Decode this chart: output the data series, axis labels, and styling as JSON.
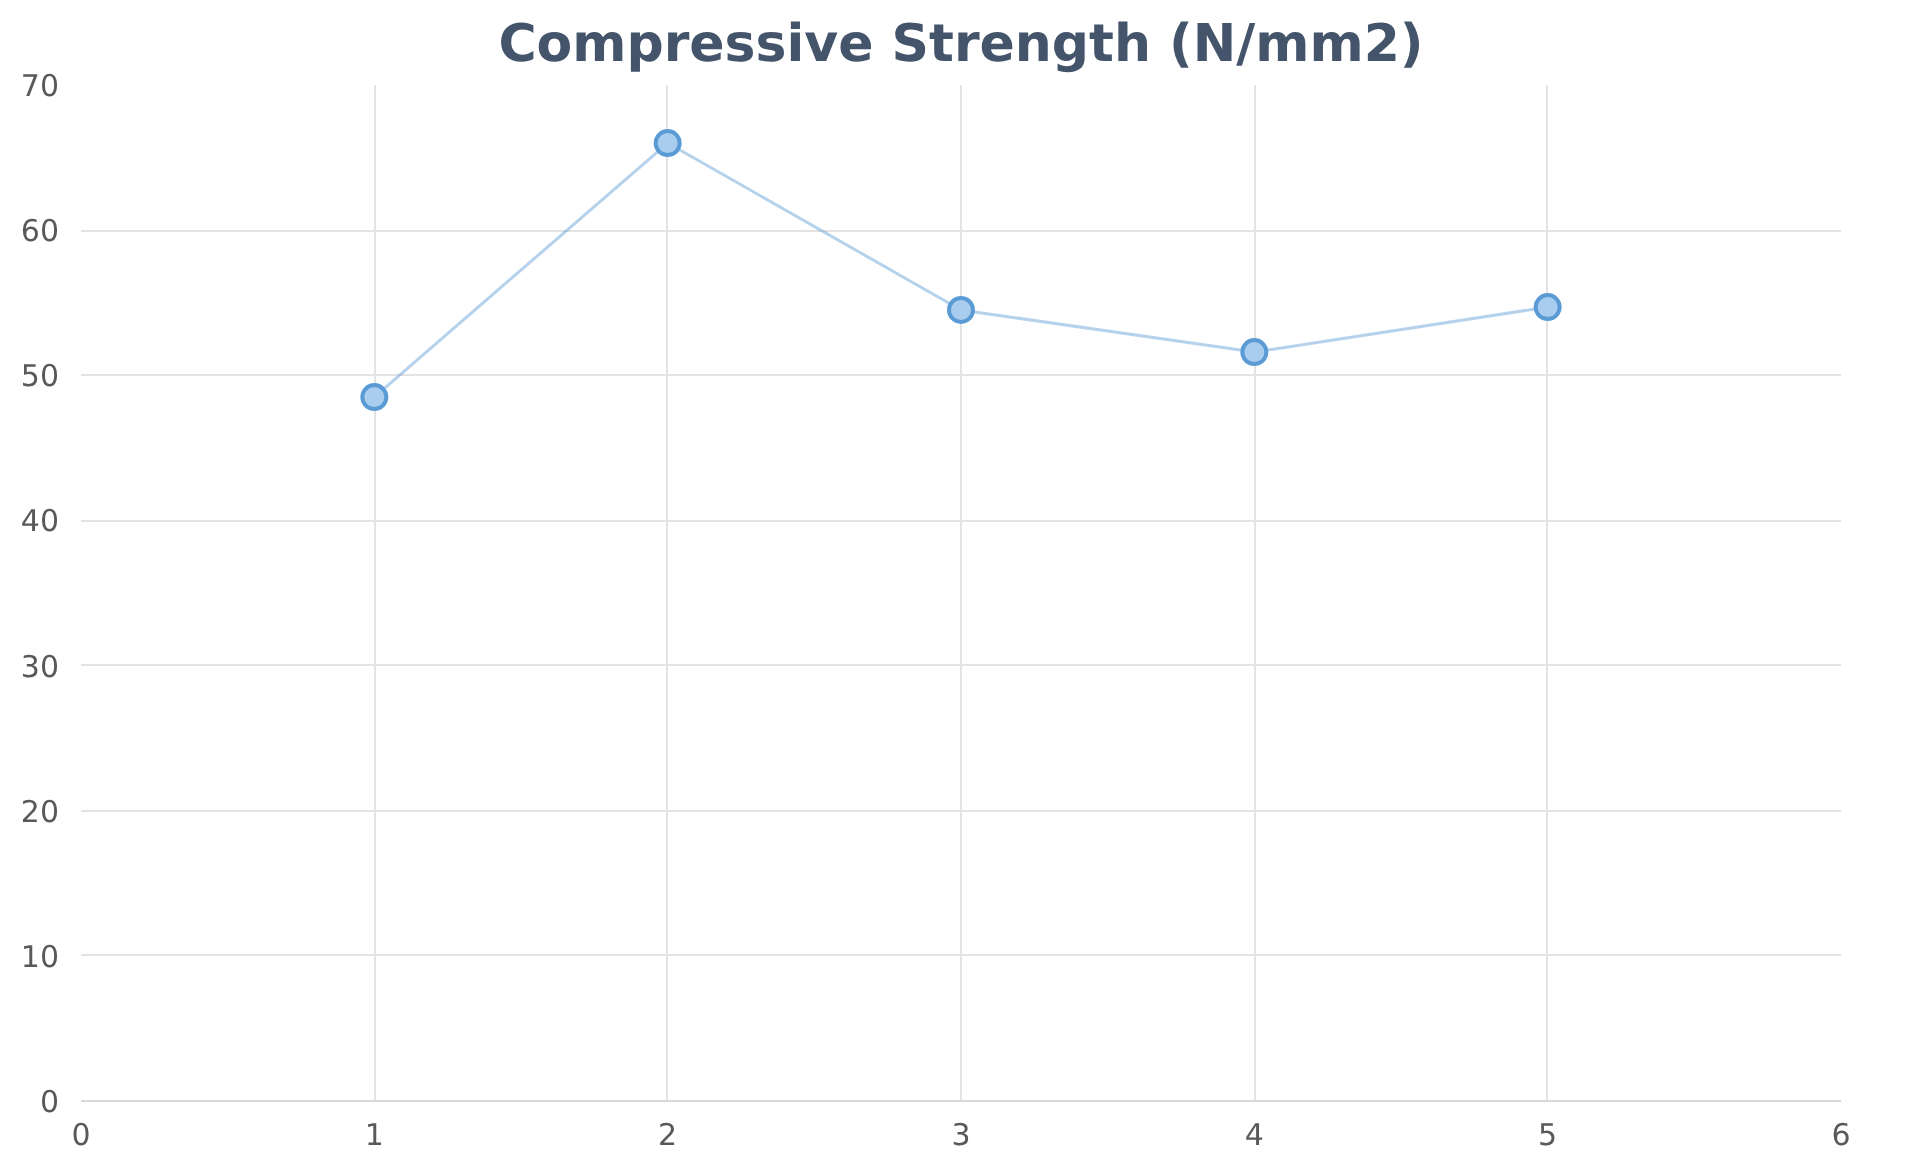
{
  "chart_data": {
    "type": "line",
    "title": "Compressive Strength (N/mm2)",
    "x": [
      1,
      2,
      3,
      4,
      5
    ],
    "series": [
      {
        "color": "#5b9bd5",
        "values": [
          48.5,
          66.0,
          54.5,
          51.6,
          54.7
        ]
      }
    ],
    "xlim": [
      0,
      6
    ],
    "xticks": [
      0,
      1,
      2,
      3,
      4,
      5,
      6
    ],
    "ylim": [
      0,
      70
    ],
    "yticks": [
      0,
      10,
      20,
      30,
      40,
      50,
      60,
      70
    ],
    "grid": true,
    "marker": "circle",
    "line_style": "solid"
  }
}
